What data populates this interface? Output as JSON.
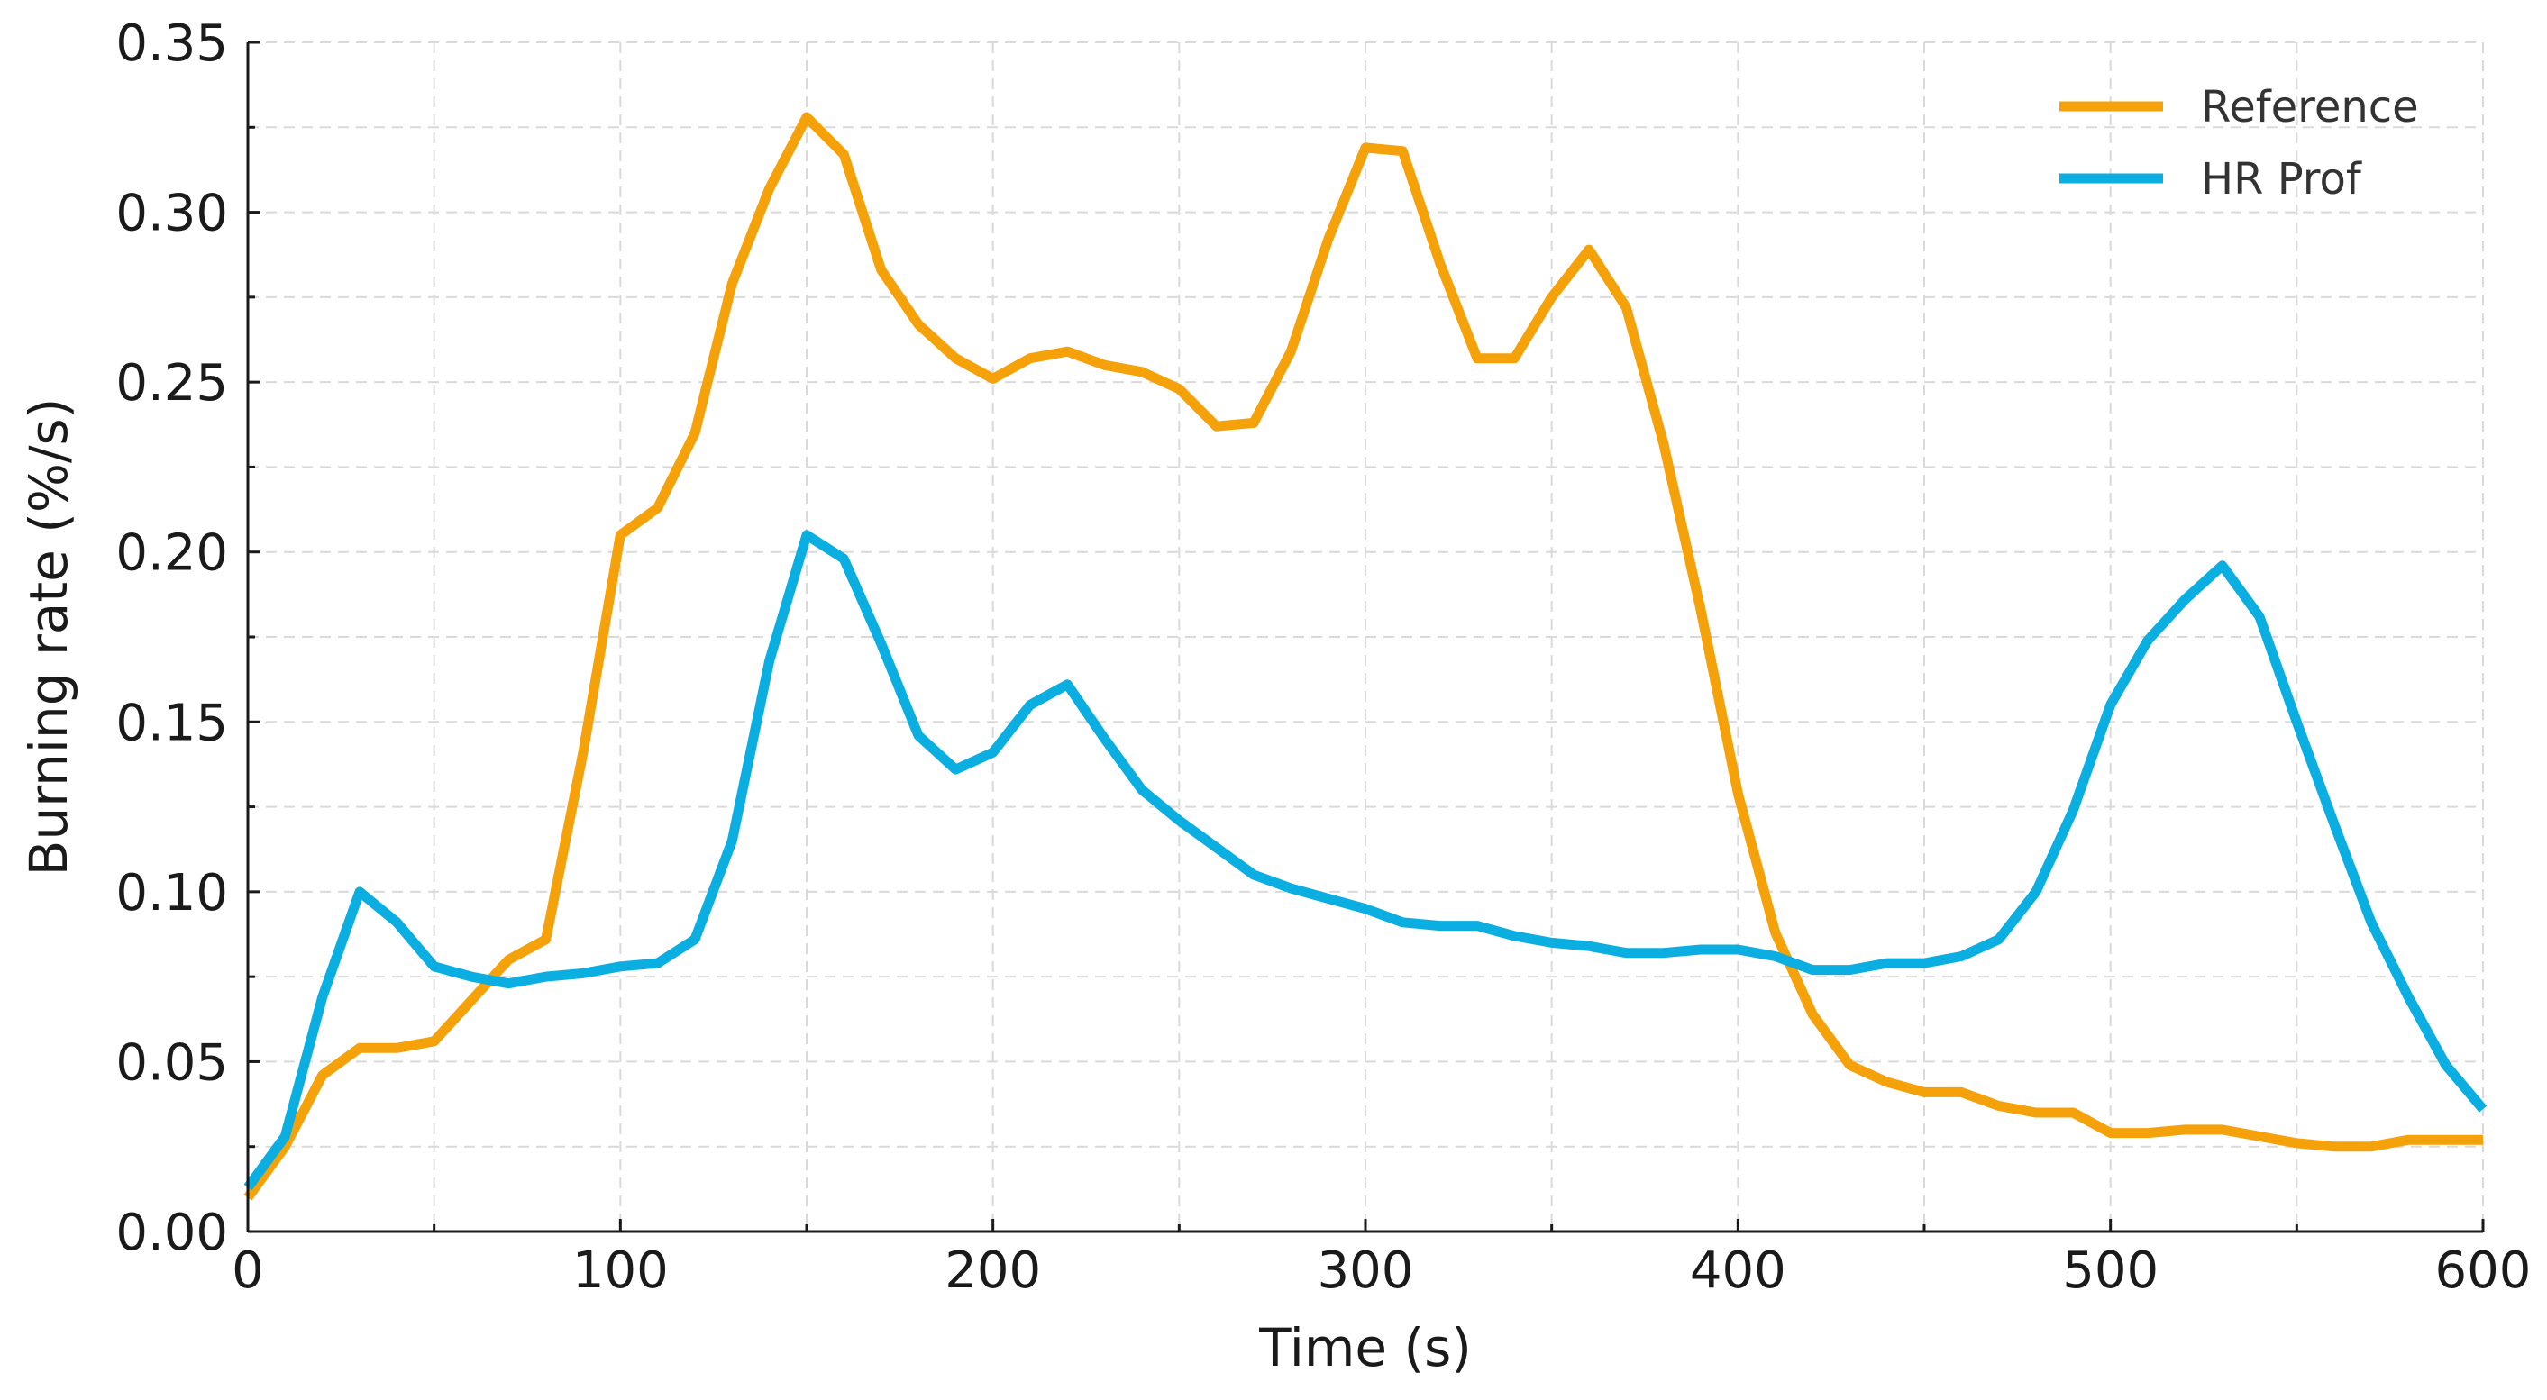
{
  "chart_data": {
    "type": "line",
    "xlabel": "Time (s)",
    "ylabel": "Burning rate (%/s)",
    "xlim": [
      0,
      600
    ],
    "ylim": [
      0,
      0.35
    ],
    "xticks": [
      0,
      100,
      200,
      300,
      400,
      500,
      600
    ],
    "xtick_labels": [
      "0",
      "100",
      "200",
      "300",
      "400",
      "500",
      "600"
    ],
    "yticks": [
      0,
      0.05,
      0.1,
      0.15,
      0.2,
      0.25,
      0.3,
      0.35
    ],
    "ytick_labels": [
      "0.00",
      "0.05",
      "0.10",
      "0.15",
      "0.20",
      "0.25",
      "0.30",
      "0.35"
    ],
    "grid": true,
    "legend_position": "top-right",
    "x": [
      0,
      10,
      20,
      30,
      40,
      50,
      60,
      70,
      80,
      90,
      100,
      110,
      120,
      130,
      140,
      150,
      160,
      170,
      180,
      190,
      200,
      210,
      220,
      230,
      240,
      250,
      260,
      270,
      280,
      290,
      300,
      310,
      320,
      330,
      340,
      350,
      360,
      370,
      380,
      390,
      400,
      410,
      420,
      430,
      440,
      450,
      460,
      470,
      480,
      490,
      500,
      510,
      520,
      530,
      540,
      550,
      560,
      570,
      580,
      590,
      600
    ],
    "series": [
      {
        "name": "Reference",
        "color": "#F5A10A",
        "values": [
          0.01,
          0.025,
          0.046,
          0.054,
          0.054,
          0.056,
          0.068,
          0.08,
          0.086,
          0.141,
          0.205,
          0.213,
          0.235,
          0.279,
          0.307,
          0.328,
          0.317,
          0.283,
          0.267,
          0.257,
          0.251,
          0.257,
          0.259,
          0.255,
          0.253,
          0.248,
          0.237,
          0.238,
          0.259,
          0.292,
          0.319,
          0.318,
          0.285,
          0.257,
          0.257,
          0.275,
          0.289,
          0.272,
          0.232,
          0.183,
          0.129,
          0.088,
          0.064,
          0.049,
          0.044,
          0.041,
          0.041,
          0.037,
          0.035,
          0.035,
          0.029,
          0.029,
          0.03,
          0.03,
          0.028,
          0.026,
          0.025,
          0.025,
          0.027,
          0.027,
          0.027
        ]
      },
      {
        "name": "HR Prof",
        "color": "#0AAEE0",
        "values": [
          0.013,
          0.028,
          0.069,
          0.1,
          0.091,
          0.078,
          0.075,
          0.073,
          0.075,
          0.076,
          0.078,
          0.079,
          0.086,
          0.115,
          0.168,
          0.205,
          0.198,
          0.173,
          0.146,
          0.136,
          0.141,
          0.155,
          0.161,
          0.145,
          0.13,
          0.121,
          0.113,
          0.105,
          0.101,
          0.098,
          0.095,
          0.091,
          0.09,
          0.09,
          0.087,
          0.085,
          0.084,
          0.082,
          0.082,
          0.083,
          0.083,
          0.081,
          0.077,
          0.077,
          0.079,
          0.079,
          0.081,
          0.086,
          0.1,
          0.124,
          0.155,
          0.174,
          0.186,
          0.196,
          0.181,
          0.15,
          0.12,
          0.091,
          0.069,
          0.049,
          0.036
        ]
      }
    ]
  }
}
